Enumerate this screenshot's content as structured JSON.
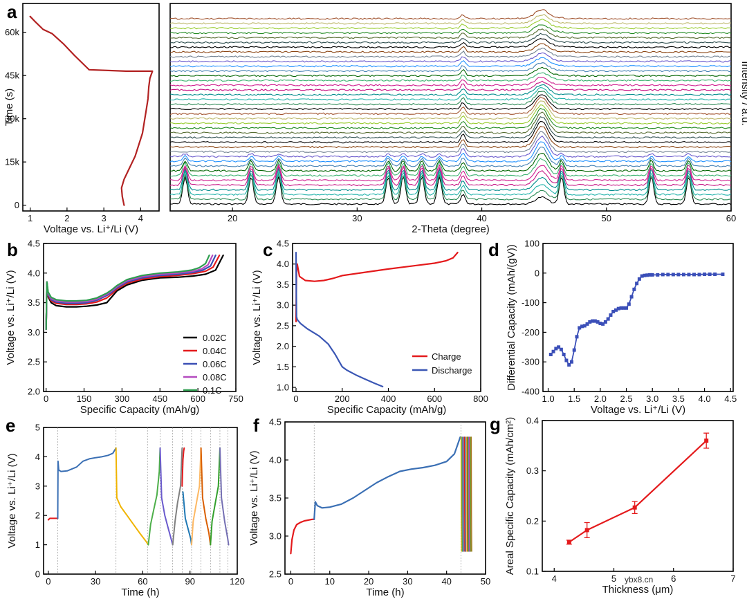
{
  "panel_labels": [
    "a",
    "b",
    "c",
    "d",
    "e",
    "f",
    "g"
  ],
  "watermark": "ybx8.cn",
  "chart_data": [
    {
      "id": "a_left",
      "type": "line",
      "xlabel": "Voltage vs. Li⁺/Li (V)",
      "ylabel": "Time (s)",
      "xlim": [
        0.8,
        4.5
      ],
      "ylim": [
        -2000,
        70000
      ],
      "xticks": [
        1,
        2,
        3,
        4
      ],
      "yticks": [
        0,
        15000,
        30000,
        45000,
        60000
      ],
      "ytick_labels": [
        "0",
        "15k",
        "30k",
        "45k",
        "60k"
      ],
      "series": [
        {
          "color": "#b22222",
          "x": [
            3.55,
            3.5,
            3.48,
            3.55,
            3.7,
            3.85,
            3.95,
            4.05,
            4.1,
            4.15,
            4.2,
            4.22,
            4.25,
            4.32,
            3.6,
            2.6,
            2.2,
            1.9,
            1.6,
            1.35,
            1.15,
            1.0
          ],
          "y": [
            0,
            3000,
            6000,
            9000,
            13000,
            17000,
            21000,
            25000,
            29000,
            33000,
            37000,
            41000,
            44000,
            46500,
            46500,
            47000,
            52000,
            56000,
            59500,
            61000,
            63500,
            65500
          ]
        }
      ]
    },
    {
      "id": "a_right",
      "type": "line",
      "xlabel": "2-Theta (degree)",
      "ylabel": "Intensity / a.u.",
      "xlim": [
        15,
        60
      ],
      "xticks": [
        20,
        30,
        40,
        50,
        60
      ],
      "n_patterns": 40,
      "peaks_2theta": [
        16.2,
        21.5,
        23.7,
        32.5,
        33.7,
        35.2,
        36.6,
        38.5,
        44.8,
        46.4,
        53.6,
        56.6
      ],
      "colors": [
        "#000000",
        "#2e8b57",
        "#20b2aa",
        "#008b8b",
        "#c71585",
        "#d02090",
        "#3cb371",
        "#006400",
        "#4682b4",
        "#1e90ff",
        "#6a5acd",
        "#708090",
        "#8b4513",
        "#000000",
        "#2f4f4f",
        "#556b2f",
        "#228b22",
        "#9acd32",
        "#bdb76b",
        "#a0522d"
      ]
    },
    {
      "id": "b",
      "type": "line",
      "xlabel": "Specific Capacity (mAh/g)",
      "ylabel": "Voltage vs. Li⁺/Li (V)",
      "xlim": [
        -10,
        750
      ],
      "ylim": [
        2.0,
        4.5
      ],
      "xticks": [
        0,
        150,
        300,
        450,
        600,
        750
      ],
      "yticks": [
        2.0,
        2.5,
        3.0,
        3.5,
        4.0,
        4.5
      ],
      "legend_position": "bottom-right",
      "series": [
        {
          "name": "0.02C",
          "color": "#000000",
          "x": [
            0,
            3,
            8,
            20,
            40,
            80,
            120,
            160,
            200,
            240,
            260,
            280,
            320,
            380,
            450,
            520,
            580,
            630,
            670,
            700
          ],
          "y": [
            3.05,
            3.85,
            3.6,
            3.5,
            3.45,
            3.43,
            3.43,
            3.44,
            3.46,
            3.5,
            3.6,
            3.7,
            3.8,
            3.88,
            3.92,
            3.93,
            3.95,
            3.98,
            4.05,
            4.3
          ]
        },
        {
          "name": "0.04C",
          "color": "#e41a1c",
          "x": [
            0,
            3,
            8,
            20,
            40,
            80,
            120,
            160,
            200,
            240,
            260,
            280,
            320,
            380,
            450,
            520,
            580,
            630,
            660,
            685
          ],
          "y": [
            3.05,
            3.85,
            3.62,
            3.53,
            3.49,
            3.47,
            3.47,
            3.48,
            3.51,
            3.58,
            3.65,
            3.73,
            3.83,
            3.9,
            3.94,
            3.96,
            3.99,
            4.03,
            4.1,
            4.3
          ]
        },
        {
          "name": "0.06C",
          "color": "#3a4fb4",
          "x": [
            0,
            3,
            8,
            20,
            40,
            80,
            120,
            160,
            200,
            240,
            260,
            280,
            320,
            380,
            450,
            520,
            580,
            620,
            650,
            670
          ],
          "y": [
            3.05,
            3.85,
            3.64,
            3.55,
            3.51,
            3.49,
            3.49,
            3.5,
            3.54,
            3.62,
            3.68,
            3.75,
            3.85,
            3.92,
            3.96,
            3.98,
            4.01,
            4.05,
            4.12,
            4.3
          ]
        },
        {
          "name": "0.08C",
          "color": "#b44bbf",
          "x": [
            0,
            3,
            8,
            20,
            40,
            80,
            120,
            160,
            200,
            240,
            260,
            280,
            320,
            380,
            450,
            520,
            580,
            615,
            640,
            658
          ],
          "y": [
            3.05,
            3.85,
            3.66,
            3.57,
            3.53,
            3.51,
            3.51,
            3.52,
            3.56,
            3.64,
            3.7,
            3.77,
            3.87,
            3.94,
            3.98,
            4.0,
            4.03,
            4.07,
            4.14,
            4.3
          ]
        },
        {
          "name": "0.1C",
          "color": "#2e9e4f",
          "x": [
            0,
            3,
            8,
            20,
            40,
            80,
            120,
            160,
            200,
            240,
            260,
            280,
            320,
            380,
            450,
            520,
            575,
            605,
            630,
            645
          ],
          "y": [
            3.05,
            3.85,
            3.68,
            3.59,
            3.55,
            3.53,
            3.53,
            3.54,
            3.58,
            3.66,
            3.72,
            3.79,
            3.89,
            3.96,
            4.0,
            4.02,
            4.05,
            4.09,
            4.16,
            4.3
          ]
        }
      ]
    },
    {
      "id": "c",
      "type": "line",
      "xlabel": "Specific Capacity (mAh/g)",
      "ylabel": "Voltage vs. Li⁺/Li (V)",
      "xlim": [
        -15,
        800
      ],
      "ylim": [
        0.9,
        4.5
      ],
      "xticks": [
        0,
        200,
        400,
        600,
        800
      ],
      "yticks": [
        1.0,
        1.5,
        2.0,
        2.5,
        3.0,
        3.5,
        4.0,
        4.5
      ],
      "legend_position": "bottom-right",
      "series": [
        {
          "name": "Charge",
          "color": "#e41a1c",
          "x": [
            0,
            2,
            5,
            15,
            40,
            80,
            120,
            160,
            200,
            300,
            400,
            500,
            600,
            650,
            680,
            700
          ],
          "y": [
            2.6,
            3.8,
            4.0,
            3.7,
            3.6,
            3.58,
            3.6,
            3.65,
            3.72,
            3.8,
            3.88,
            3.95,
            4.02,
            4.08,
            4.15,
            4.28
          ]
        },
        {
          "name": "Discharge",
          "color": "#3a56b4",
          "x": [
            0,
            1,
            2,
            5,
            20,
            50,
            100,
            140,
            170,
            190,
            200,
            220,
            260,
            300,
            340,
            375
          ],
          "y": [
            4.28,
            3.5,
            2.72,
            2.65,
            2.55,
            2.42,
            2.25,
            2.05,
            1.8,
            1.6,
            1.5,
            1.42,
            1.3,
            1.2,
            1.1,
            1.02
          ]
        }
      ]
    },
    {
      "id": "d",
      "type": "scatter",
      "xlabel": "Voltage vs. Li⁺/Li (V)",
      "ylabel": "Differential Capacity (mAh/(gV))",
      "xlim": [
        0.9,
        4.55
      ],
      "ylim": [
        -400,
        100
      ],
      "xticks": [
        1.0,
        1.5,
        2.0,
        2.5,
        3.0,
        3.5,
        4.0,
        4.5
      ],
      "yticks": [
        -400,
        -300,
        -200,
        -100,
        0,
        100
      ],
      "series": [
        {
          "color": "#3b4fb8",
          "x": [
            1.05,
            1.1,
            1.15,
            1.2,
            1.25,
            1.3,
            1.35,
            1.4,
            1.45,
            1.5,
            1.55,
            1.6,
            1.65,
            1.7,
            1.75,
            1.8,
            1.85,
            1.9,
            1.95,
            2.0,
            2.05,
            2.1,
            2.15,
            2.2,
            2.25,
            2.3,
            2.35,
            2.4,
            2.45,
            2.5,
            2.55,
            2.6,
            2.65,
            2.7,
            2.75,
            2.8,
            2.85,
            2.9,
            2.95,
            3.0,
            3.1,
            3.2,
            3.3,
            3.4,
            3.5,
            3.6,
            3.7,
            3.8,
            3.9,
            4.0,
            4.1,
            4.2,
            4.35
          ],
          "y": [
            -275,
            -265,
            -255,
            -250,
            -258,
            -275,
            -295,
            -310,
            -300,
            -260,
            -215,
            -185,
            -180,
            -178,
            -172,
            -165,
            -162,
            -162,
            -165,
            -170,
            -172,
            -165,
            -155,
            -142,
            -130,
            -125,
            -120,
            -118,
            -118,
            -118,
            -105,
            -80,
            -55,
            -35,
            -20,
            -10,
            -8,
            -7,
            -6,
            -6,
            -6,
            -5,
            -5,
            -5,
            -5,
            -5,
            -5,
            -5,
            -5,
            -4,
            -4,
            -4,
            -4
          ]
        }
      ]
    },
    {
      "id": "e",
      "type": "line",
      "xlabel": "Time (h)",
      "ylabel": "Voltage vs. Li⁺/Li (V)",
      "xlim": [
        -3,
        120
      ],
      "ylim": [
        0,
        5
      ],
      "xticks": [
        0,
        30,
        60,
        90,
        120
      ],
      "yticks": [
        0,
        1,
        2,
        3,
        4,
        5
      ],
      "vlines": [
        6,
        43,
        63,
        71,
        79,
        85,
        91,
        97,
        103,
        109,
        114
      ],
      "series": [
        {
          "color": "#e41a1c",
          "x": [
            0,
            1,
            3,
            5,
            6
          ],
          "y": [
            1.85,
            1.9,
            1.9,
            1.9,
            1.9
          ]
        },
        {
          "color": "#3a6fb4",
          "x": [
            6,
            6.2,
            6.6,
            8,
            12,
            18,
            22,
            26,
            30,
            34,
            38,
            41,
            43
          ],
          "y": [
            1.9,
            3.85,
            3.55,
            3.5,
            3.52,
            3.65,
            3.85,
            3.93,
            3.97,
            4.0,
            4.05,
            4.12,
            4.3
          ]
        },
        {
          "color": "#f0b400",
          "x": [
            43,
            43.5,
            46,
            50,
            54,
            58,
            62,
            63.5
          ],
          "y": [
            4.3,
            2.6,
            2.3,
            2.0,
            1.7,
            1.4,
            1.12,
            1.0
          ]
        },
        {
          "color": "#4daf4a",
          "x": [
            63.5,
            65,
            67,
            69,
            70.5,
            71
          ],
          "y": [
            1.0,
            1.7,
            2.2,
            2.7,
            3.5,
            4.3
          ]
        },
        {
          "color": "#6a5acd",
          "x": [
            71,
            72,
            74,
            76,
            78,
            79
          ],
          "y": [
            4.3,
            2.6,
            2.0,
            1.6,
            1.2,
            1.0
          ]
        },
        {
          "color": "#808080",
          "x": [
            79,
            80.5,
            82,
            84,
            85
          ],
          "y": [
            1.0,
            1.8,
            2.4,
            3.0,
            4.3
          ]
        },
        {
          "color": "#e41a1c",
          "x": [
            85,
            85.5,
            86,
            86.3
          ],
          "y": [
            3.0,
            3.9,
            4.2,
            4.3
          ]
        },
        {
          "color": "#1f78b4",
          "x": [
            85.5,
            87,
            89,
            90.5,
            91
          ],
          "y": [
            2.8,
            1.9,
            1.5,
            1.2,
            1.0
          ]
        },
        {
          "color": "#fdb863",
          "x": [
            91,
            92,
            94,
            96,
            97
          ],
          "y": [
            1.0,
            1.8,
            2.4,
            3.0,
            4.3
          ]
        },
        {
          "color": "#d95f02",
          "x": [
            97,
            98,
            100,
            102,
            103
          ],
          "y": [
            4.3,
            2.6,
            1.9,
            1.4,
            1.0
          ]
        },
        {
          "color": "#33a02c",
          "x": [
            103,
            104,
            106,
            108,
            109
          ],
          "y": [
            1.0,
            1.8,
            2.4,
            3.0,
            4.3
          ]
        },
        {
          "color": "#7570b3",
          "x": [
            109,
            110,
            112,
            114,
            114.5
          ],
          "y": [
            4.3,
            2.6,
            1.8,
            1.2,
            1.0
          ]
        }
      ]
    },
    {
      "id": "f",
      "type": "line",
      "xlabel": "Time (h)",
      "ylabel": "Voltage vs. Li⁺/Li (V)",
      "xlim": [
        -1.5,
        50
      ],
      "ylim": [
        2.5,
        4.5
      ],
      "xticks": [
        0,
        10,
        20,
        30,
        40,
        50
      ],
      "yticks": [
        2.5,
        3.0,
        3.5,
        4.0,
        4.5
      ],
      "vlines": [
        6,
        43.7
      ],
      "spike_colors": [
        "#f0b400",
        "#4daf4a",
        "#6a5acd",
        "#808080",
        "#e41a1c",
        "#1f78b4",
        "#fdb863",
        "#d95f02",
        "#33a02c",
        "#7570b3",
        "#e7298a",
        "#66a61e",
        "#a6761d"
      ],
      "series": [
        {
          "color": "#e41a1c",
          "x": [
            0,
            0.3,
            0.8,
            1.5,
            2.5,
            3.5,
            4.5,
            5.5,
            6
          ],
          "y": [
            2.77,
            2.95,
            3.08,
            3.15,
            3.18,
            3.2,
            3.21,
            3.22,
            3.22
          ]
        },
        {
          "color": "#3a6fb4",
          "x": [
            6,
            6.3,
            6.8,
            8,
            10,
            13,
            16,
            19,
            22,
            25,
            28,
            31,
            34,
            37,
            40,
            42,
            43.5
          ],
          "y": [
            3.22,
            3.45,
            3.4,
            3.37,
            3.38,
            3.42,
            3.5,
            3.6,
            3.7,
            3.78,
            3.85,
            3.88,
            3.9,
            3.93,
            3.98,
            4.08,
            4.3
          ]
        }
      ]
    },
    {
      "id": "g",
      "type": "line",
      "xlabel": "Thickness (μm)",
      "ylabel": "Areal Specific Capacity (mAh/cm²)",
      "xlim": [
        3.8,
        7.0
      ],
      "ylim": [
        0.1,
        0.4
      ],
      "xticks": [
        4,
        5,
        6,
        7
      ],
      "yticks": [
        0.1,
        0.2,
        0.3,
        0.4
      ],
      "series": [
        {
          "color": "#e41a1c",
          "x": [
            4.25,
            4.55,
            5.35,
            6.55
          ],
          "y": [
            0.158,
            0.182,
            0.227,
            0.36
          ],
          "err": [
            0.004,
            0.015,
            0.012,
            0.015
          ]
        }
      ]
    }
  ]
}
